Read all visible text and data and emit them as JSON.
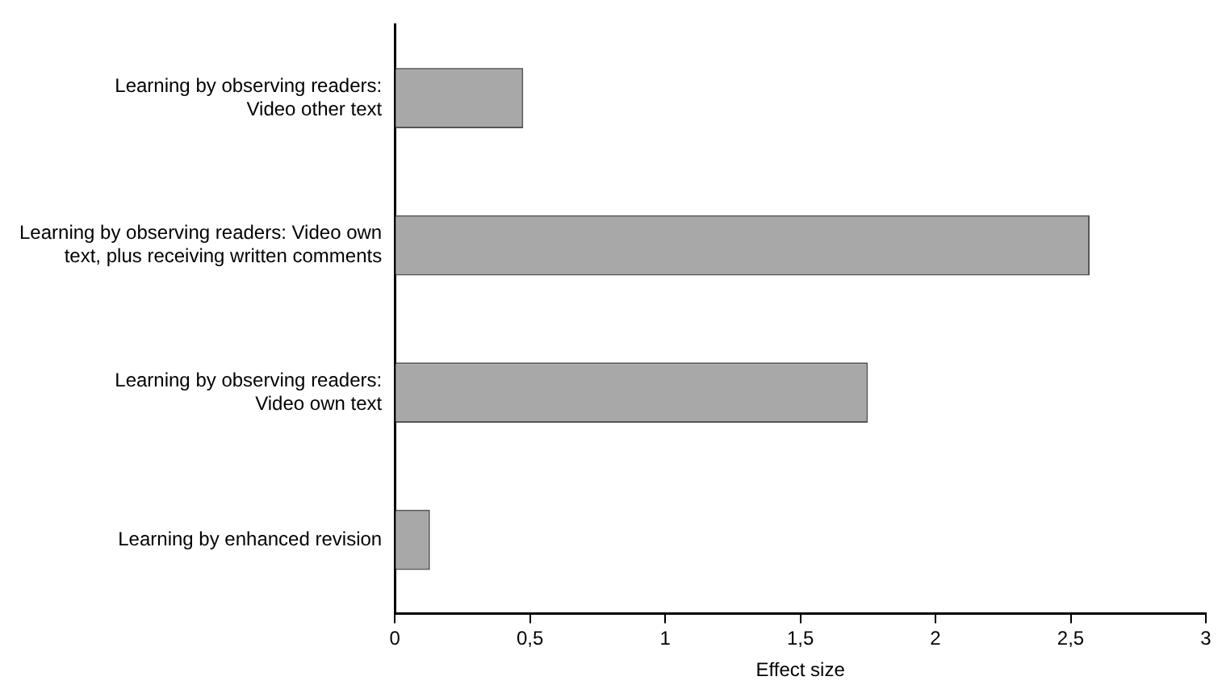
{
  "chart_data": {
    "type": "bar",
    "orientation": "horizontal",
    "categories": [
      "Learning by observing readers:\nVideo other text",
      "Learning by observing readers: Video own\ntext, plus receiving written comments",
      "Learning by observing readers:\nVideo own text",
      "Learning by enhanced revision"
    ],
    "values": [
      0.475,
      2.57,
      1.75,
      0.13
    ],
    "color": "#a8a8a8",
    "xlabel": "Effect size",
    "xlim": [
      0,
      3
    ],
    "xticks": [
      0,
      {
        "value": 0.5,
        "label": "0,5"
      },
      1,
      {
        "value": 1.5,
        "label": "1,5"
      },
      2,
      {
        "value": 2.5,
        "label": "2,5"
      },
      3
    ],
    "grid": false,
    "legend": false
  }
}
